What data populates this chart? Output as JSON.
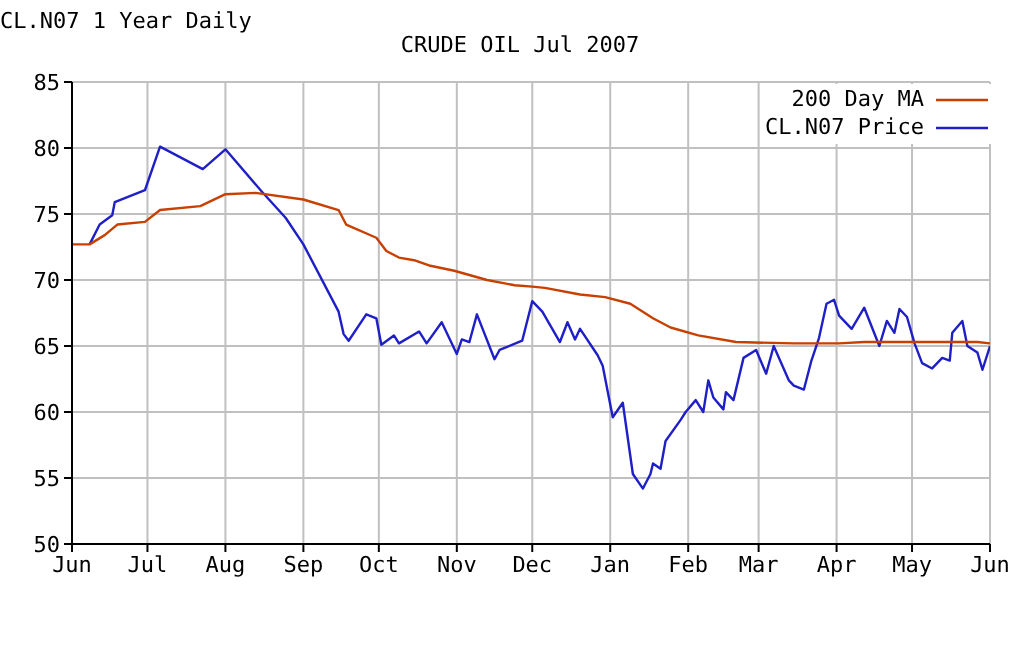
{
  "chart_data": {
    "type": "line",
    "title": "CRUDE OIL Jul 2007",
    "subtitle": "CL.N07 1 Year Daily",
    "xlim": [
      "2006-06-01",
      "2007-06-01"
    ],
    "xticks": [
      {
        "value": "2006-06-01",
        "label": "Jun"
      },
      {
        "value": "2006-07-01",
        "label": "Jul"
      },
      {
        "value": "2006-08-01",
        "label": "Aug"
      },
      {
        "value": "2006-09-01",
        "label": "Sep"
      },
      {
        "value": "2006-10-01",
        "label": "Oct"
      },
      {
        "value": "2006-11-01",
        "label": "Nov"
      },
      {
        "value": "2006-12-01",
        "label": "Dec"
      },
      {
        "value": "2007-01-01",
        "label": "Jan"
      },
      {
        "value": "2007-02-01",
        "label": "Feb"
      },
      {
        "value": "2007-03-01",
        "label": "Mar"
      },
      {
        "value": "2007-04-01",
        "label": "Apr"
      },
      {
        "value": "2007-05-01",
        "label": "May"
      },
      {
        "value": "2007-06-01",
        "label": "Jun"
      }
    ],
    "ylim": [
      50,
      85
    ],
    "yticks": [
      50,
      55,
      60,
      65,
      70,
      75,
      80,
      85
    ],
    "grid": true,
    "legend": "top right",
    "marker": "none",
    "line_style": "solid",
    "series": [
      {
        "name": "CL.N07 Price",
        "color": "#1f1fc8",
        "x": [
          "2006-06-08",
          "2006-06-12",
          "2006-06-17",
          "2006-06-18",
          "2006-06-30",
          "2006-07-06",
          "2006-07-23",
          "2006-08-01",
          "2006-08-15",
          "2006-08-25",
          "2006-09-01",
          "2006-09-15",
          "2006-09-17",
          "2006-09-19",
          "2006-09-26",
          "2006-09-30",
          "2006-10-02",
          "2006-10-07",
          "2006-10-09",
          "2006-10-17",
          "2006-10-20",
          "2006-10-26",
          "2006-11-01",
          "2006-11-03",
          "2006-11-06",
          "2006-11-09",
          "2006-11-16",
          "2006-11-18",
          "2006-11-27",
          "2006-12-01",
          "2006-12-05",
          "2006-12-12",
          "2006-12-15",
          "2006-12-18",
          "2006-12-20",
          "2006-12-27",
          "2006-12-29",
          "2007-01-02",
          "2007-01-06",
          "2007-01-10",
          "2007-01-14",
          "2007-01-17",
          "2007-01-18",
          "2007-01-21",
          "2007-01-23",
          "2007-01-29",
          "2007-01-31",
          "2007-02-04",
          "2007-02-07",
          "2007-02-09",
          "2007-02-11",
          "2007-02-15",
          "2007-02-16",
          "2007-02-19",
          "2007-02-23",
          "2007-02-28",
          "2007-03-04",
          "2007-03-07",
          "2007-03-13",
          "2007-03-15",
          "2007-03-19",
          "2007-03-22",
          "2007-03-25",
          "2007-03-28",
          "2007-03-31",
          "2007-04-02",
          "2007-04-07",
          "2007-04-12",
          "2007-04-18",
          "2007-04-21",
          "2007-04-24",
          "2007-04-26",
          "2007-04-29",
          "2007-05-02",
          "2007-05-05",
          "2007-05-09",
          "2007-05-13",
          "2007-05-16",
          "2007-05-17",
          "2007-05-21",
          "2007-05-23",
          "2007-05-27",
          "2007-05-29",
          "2007-06-01"
        ],
        "values": [
          72.7,
          74.2,
          74.9,
          75.9,
          76.8,
          80.1,
          78.4,
          79.9,
          76.8,
          74.7,
          72.7,
          67.6,
          65.9,
          65.4,
          67.4,
          67.1,
          65.1,
          65.8,
          65.2,
          66.1,
          65.2,
          66.8,
          64.4,
          65.5,
          65.3,
          67.4,
          64.0,
          64.7,
          65.4,
          68.4,
          67.6,
          65.3,
          66.8,
          65.5,
          66.3,
          64.3,
          63.5,
          59.6,
          60.7,
          55.3,
          54.2,
          55.3,
          56.1,
          55.7,
          57.8,
          59.4,
          60.0,
          60.9,
          60.0,
          62.4,
          61.1,
          60.2,
          61.5,
          60.9,
          64.1,
          64.7,
          62.9,
          65.0,
          62.4,
          62.0,
          61.7,
          63.9,
          65.6,
          68.2,
          68.5,
          67.3,
          66.3,
          67.9,
          65.0,
          66.9,
          66.0,
          67.8,
          67.2,
          65.2,
          63.7,
          63.3,
          64.1,
          63.9,
          66.0,
          66.9,
          65.0,
          64.5,
          63.2,
          65.0
        ]
      },
      {
        "name": "200 Day MA",
        "color": "#c84000",
        "x": [
          "2006-06-01",
          "2006-06-08",
          "2006-06-14",
          "2006-06-19",
          "2006-06-30",
          "2006-07-06",
          "2006-07-22",
          "2006-08-01",
          "2006-08-13",
          "2006-09-01",
          "2006-09-15",
          "2006-09-18",
          "2006-09-30",
          "2006-10-04",
          "2006-10-09",
          "2006-10-15",
          "2006-10-21",
          "2006-10-31",
          "2006-11-13",
          "2006-11-24",
          "2006-12-01",
          "2006-12-06",
          "2006-12-20",
          "2006-12-30",
          "2007-01-09",
          "2007-01-18",
          "2007-01-25",
          "2007-02-05",
          "2007-02-20",
          "2007-03-15",
          "2007-04-02",
          "2007-04-12",
          "2007-05-09",
          "2007-05-27",
          "2007-06-01"
        ],
        "values": [
          72.7,
          72.7,
          73.4,
          74.2,
          74.4,
          75.3,
          75.6,
          76.5,
          76.6,
          76.1,
          75.3,
          74.2,
          73.2,
          72.2,
          71.7,
          71.5,
          71.1,
          70.7,
          70.0,
          69.6,
          69.5,
          69.4,
          68.9,
          68.7,
          68.2,
          67.1,
          66.4,
          65.8,
          65.3,
          65.2,
          65.2,
          65.3,
          65.3,
          65.3,
          65.2
        ]
      }
    ]
  }
}
